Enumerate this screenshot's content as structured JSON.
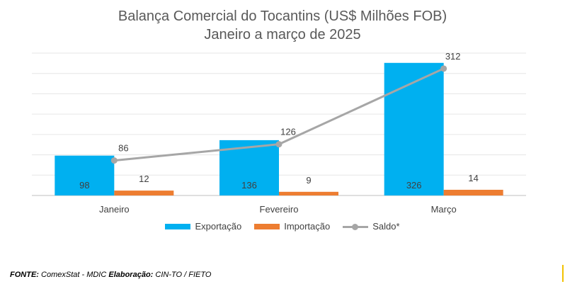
{
  "chart_data": {
    "type": "bar",
    "title": "Balança Comercial do Tocantins (US$ Milhões FOB)",
    "subtitle": "Janeiro a março de 2025",
    "categories": [
      "Janeiro",
      "Fevereiro",
      "Março"
    ],
    "ylim": [
      0,
      350
    ],
    "grid": true,
    "legend_position": "bottom",
    "series": [
      {
        "name": "Exportação",
        "type": "bar",
        "color": "#00b0f0",
        "values": [
          98,
          136,
          326
        ]
      },
      {
        "name": "Importação",
        "type": "bar",
        "color": "#ed7d31",
        "values": [
          12,
          9,
          14
        ]
      },
      {
        "name": "Saldo*",
        "type": "line",
        "color": "#a6a6a6",
        "values": [
          86,
          126,
          312
        ]
      }
    ]
  },
  "footer": {
    "fonte_label": "FONTE:",
    "fonte_text": " ComexStat - MDIC ",
    "elaboracao_label": "Elaboração:",
    "elaboracao_text": " CIN-TO / FIETO"
  }
}
